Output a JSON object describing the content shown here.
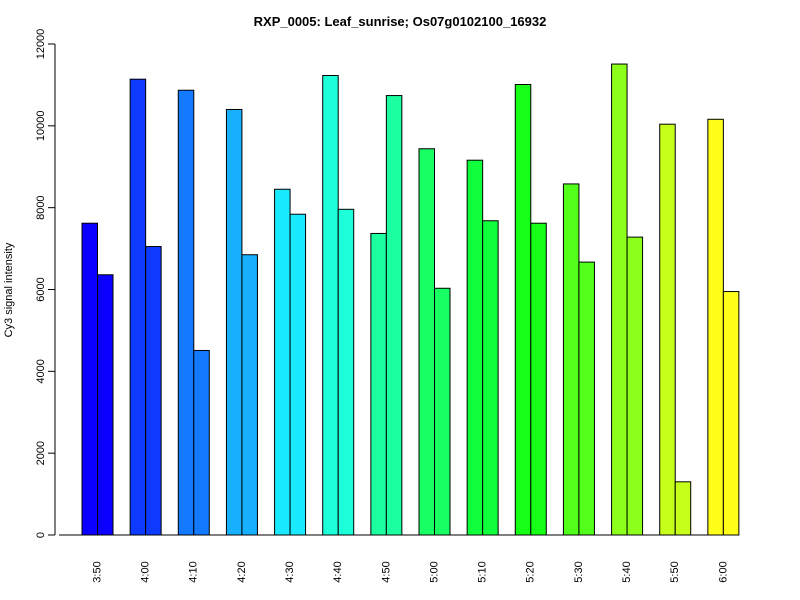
{
  "chart_data": {
    "type": "bar",
    "title": "RXP_0005: Leaf_sunrise; Os07g0102100_16932",
    "xlabel": "",
    "ylabel": "Cy3 signal intensity",
    "ylim": [
      0,
      12000
    ],
    "yticks": [
      0,
      2000,
      4000,
      6000,
      8000,
      10000,
      12000
    ],
    "categories": [
      "3:50",
      "4:00",
      "4:10",
      "4:20",
      "4:30",
      "4:40",
      "4:50",
      "5:00",
      "5:10",
      "5:20",
      "5:30",
      "5:40",
      "5:50",
      "6:00"
    ],
    "series": [
      {
        "values": [
          7620,
          11140,
          10870,
          10400,
          8450,
          11230,
          7370,
          9440,
          9160,
          11010,
          8580,
          11510,
          10040,
          10160
        ]
      },
      {
        "values": [
          6360,
          7050,
          4510,
          6850,
          7840,
          7960,
          10740,
          6030,
          7680,
          7620,
          6670,
          7280,
          1300,
          5950
        ]
      }
    ],
    "colors": [
      "#0b00ff",
      "#0e39ff",
      "#1379ff",
      "#16b0ff",
      "#19eaff",
      "#1cffd8",
      "#1cffa0",
      "#17ff62",
      "#10ff3c",
      "#16ff16",
      "#52ff1a",
      "#8cff1a",
      "#c6ff1a",
      "#ffff19"
    ],
    "grid": false,
    "legend": "none"
  }
}
